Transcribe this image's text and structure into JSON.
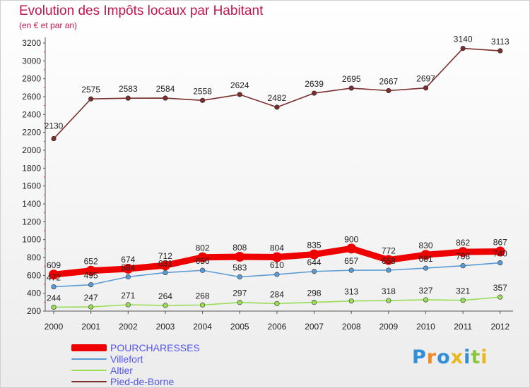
{
  "chart_data": {
    "type": "line",
    "title": "Evolution des Impôts locaux par Habitant",
    "subtitle": "(en € et par an)",
    "xlabel": "",
    "ylabel": "",
    "ylim": [
      200,
      3200
    ],
    "yticks": [
      200,
      400,
      600,
      800,
      1000,
      1200,
      1400,
      1600,
      1800,
      2000,
      2200,
      2400,
      2600,
      2800,
      3000,
      3200
    ],
    "grid": false,
    "legend": "bottom-left",
    "categories": [
      "2000",
      "2001",
      "2002",
      "2003",
      "2004",
      "2005",
      "2006",
      "2007",
      "2008",
      "2009",
      "2010",
      "2011",
      "2012"
    ],
    "series": [
      {
        "name": "POURCHARESSES",
        "color": "#ee0000",
        "values": [
          609,
          652,
          674,
          712,
          802,
          808,
          804,
          835,
          900,
          772,
          830,
          862,
          867
        ]
      },
      {
        "name": "Villefort",
        "color": "#5b9bd5",
        "values": [
          472,
          495,
          584,
          631,
          656,
          583,
          610,
          644,
          657,
          658,
          681,
          708,
          740
        ]
      },
      {
        "name": "Altier",
        "color": "#99dd55",
        "values": [
          244,
          247,
          271,
          264,
          268,
          297,
          284,
          298,
          313,
          318,
          327,
          321,
          357
        ]
      },
      {
        "name": "Pied-de-Borne",
        "color": "#7a2e2e",
        "values": [
          2130,
          2575,
          2583,
          2584,
          2558,
          2624,
          2482,
          2639,
          2695,
          2667,
          2697,
          3140,
          3113
        ]
      }
    ]
  },
  "logo": {
    "text": "Proxiti",
    "colors": [
      "#2f8fd8",
      "#f08a24",
      "#2f8fd8",
      "#e8b820",
      "#2f8fd8",
      "#8cc63f",
      "#e8b820"
    ]
  }
}
